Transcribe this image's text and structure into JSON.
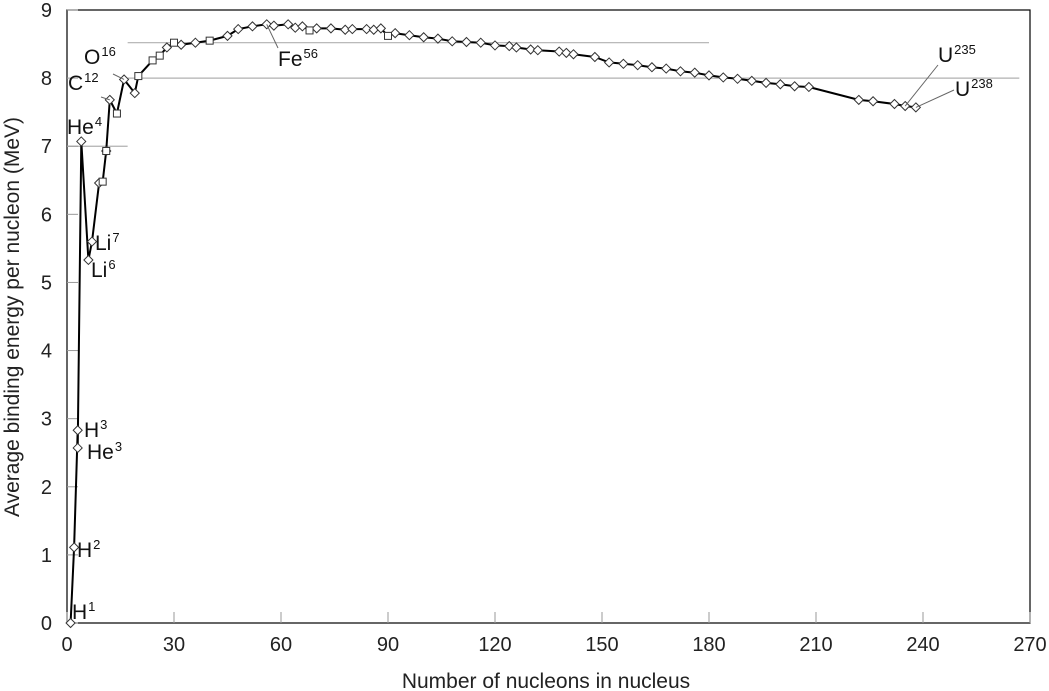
{
  "chart_data": {
    "type": "line",
    "title": "",
    "xlabel": "Number of nucleons in nucleus",
    "ylabel": "Average binding energy per nucleon (MeV)",
    "xlim": [
      0,
      270
    ],
    "ylim": [
      0,
      9
    ],
    "x_ticks": [
      "0",
      "30",
      "60",
      "90",
      "120",
      "150",
      "180",
      "210",
      "240",
      "270"
    ],
    "y_ticks": [
      "0",
      "1",
      "2",
      "3",
      "4",
      "5",
      "6",
      "7",
      "8",
      "9"
    ],
    "reference_lines": [
      {
        "y": 7.0,
        "x_from": 0,
        "x_to": 17
      },
      {
        "y": 8.0,
        "x_from": 17,
        "x_to": 267
      },
      {
        "y": 8.52,
        "x_from": 17,
        "x_to": 180
      }
    ],
    "series": [
      {
        "marker": "diamond",
        "points": [
          [
            1,
            0.0
          ],
          [
            2,
            1.11
          ],
          [
            3,
            2.83
          ],
          [
            3,
            2.57
          ],
          [
            4,
            7.07
          ],
          [
            6,
            5.33
          ],
          [
            7,
            5.6
          ],
          [
            9,
            6.46
          ],
          [
            11,
            6.93
          ],
          [
            12,
            7.68
          ],
          [
            16,
            7.98
          ],
          [
            19,
            7.78
          ],
          [
            28,
            8.45
          ],
          [
            32,
            8.49
          ],
          [
            36,
            8.52
          ],
          [
            45,
            8.62
          ],
          [
            48,
            8.72
          ],
          [
            52,
            8.76
          ],
          [
            56,
            8.79
          ],
          [
            58,
            8.77
          ],
          [
            62,
            8.79
          ],
          [
            64,
            8.74
          ],
          [
            66,
            8.76
          ],
          [
            70,
            8.73
          ],
          [
            74,
            8.73
          ],
          [
            78,
            8.71
          ],
          [
            80,
            8.72
          ],
          [
            84,
            8.72
          ],
          [
            86,
            8.71
          ],
          [
            88,
            8.73
          ],
          [
            92,
            8.66
          ],
          [
            96,
            8.63
          ],
          [
            100,
            8.6
          ],
          [
            104,
            8.58
          ],
          [
            108,
            8.54
          ],
          [
            112,
            8.53
          ],
          [
            116,
            8.52
          ],
          [
            120,
            8.48
          ],
          [
            124,
            8.47
          ],
          [
            126,
            8.45
          ],
          [
            130,
            8.42
          ],
          [
            132,
            8.41
          ],
          [
            138,
            8.39
          ],
          [
            140,
            8.37
          ],
          [
            142,
            8.35
          ],
          [
            148,
            8.31
          ],
          [
            152,
            8.23
          ],
          [
            156,
            8.21
          ],
          [
            160,
            8.19
          ],
          [
            164,
            8.16
          ],
          [
            168,
            8.14
          ],
          [
            172,
            8.1
          ],
          [
            176,
            8.08
          ],
          [
            180,
            8.04
          ],
          [
            184,
            8.01
          ],
          [
            188,
            7.99
          ],
          [
            192,
            7.96
          ],
          [
            196,
            7.93
          ],
          [
            200,
            7.91
          ],
          [
            204,
            7.88
          ],
          [
            208,
            7.87
          ],
          [
            222,
            7.68
          ],
          [
            226,
            7.66
          ],
          [
            232,
            7.62
          ],
          [
            235,
            7.59
          ],
          [
            238,
            7.57
          ]
        ]
      },
      {
        "marker": "square",
        "points": [
          [
            10,
            6.48
          ],
          [
            11,
            6.93
          ],
          [
            14,
            7.48
          ],
          [
            20,
            8.03
          ],
          [
            24,
            8.26
          ],
          [
            26,
            8.33
          ],
          [
            30,
            8.52
          ],
          [
            40,
            8.55
          ],
          [
            68,
            8.7
          ],
          [
            90,
            8.62
          ]
        ]
      }
    ],
    "annotations": [
      {
        "base": "H",
        "sup": "1",
        "x": 1,
        "y": 0.0
      },
      {
        "base": "H",
        "sup": "2",
        "x": 2,
        "y": 1.11
      },
      {
        "base": "H",
        "sup": "3",
        "x": 3,
        "y": 2.83
      },
      {
        "base": "He",
        "sup": "3",
        "x": 3,
        "y": 2.57
      },
      {
        "base": "He",
        "sup": "4",
        "x": 4,
        "y": 7.07
      },
      {
        "base": "Li",
        "sup": "6",
        "x": 6,
        "y": 5.33
      },
      {
        "base": "Li",
        "sup": "7",
        "x": 7,
        "y": 5.6
      },
      {
        "base": "C",
        "sup": "12",
        "x": 12,
        "y": 7.68
      },
      {
        "base": "O",
        "sup": "16",
        "x": 16,
        "y": 7.98
      },
      {
        "base": "Fe",
        "sup": "56",
        "x": 56,
        "y": 8.79
      },
      {
        "base": "U",
        "sup": "235",
        "x": 235,
        "y": 7.59
      },
      {
        "base": "U",
        "sup": "238",
        "x": 238,
        "y": 7.57
      }
    ]
  }
}
